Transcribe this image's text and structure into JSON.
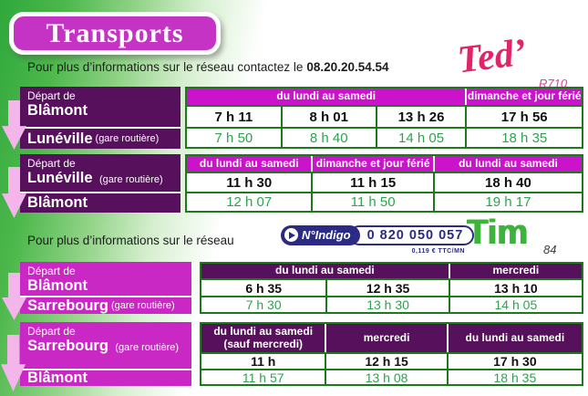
{
  "page": {
    "title": "Transports",
    "info_ted": {
      "text": "Pour plus d’informations sur le réseau contactez le",
      "phone": "08.20.20.54.54"
    },
    "ted_logo": {
      "name": "Ted’",
      "line": "R710"
    },
    "info_tim": {
      "text": "Pour plus d’informations sur le réseau"
    },
    "indigo": {
      "label": "N°Indigo",
      "number": "0 820 050 057",
      "rate": "0,119 € TTC/MN"
    },
    "tim_logo": {
      "name": "Tim",
      "line": "84"
    }
  },
  "tables": [
    {
      "label": {
        "prefix": "Départ de",
        "from": "Blâmont",
        "to": "Lunéville",
        "to_suffix": "(gare routière)"
      },
      "header": [
        "du lundi au samedi",
        "dimanche et jour férié"
      ],
      "departures": [
        "7 h 11",
        "8 h 01",
        "13 h 26",
        "17 h 56"
      ],
      "arrivals": [
        "7 h 50",
        "8 h 40",
        "14 h 05",
        "18 h 35"
      ]
    },
    {
      "label": {
        "prefix": "Départ de",
        "from": "Lunéville",
        "from_suffix": "(gare routière)",
        "to": "Blâmont"
      },
      "header": [
        "du lundi au samedi",
        "dimanche et jour férié",
        "du lundi au samedi"
      ],
      "departures": [
        "11 h 30",
        "11 h 15",
        "18 h 40"
      ],
      "arrivals": [
        "12 h 07",
        "11 h 50",
        "19 h 17"
      ]
    },
    {
      "label": {
        "prefix": "Départ de",
        "from": "Blâmont",
        "to": "Sarrebourg",
        "to_suffix": "(gare routière)"
      },
      "header": [
        "du lundi au samedi",
        "mercredi"
      ],
      "departures": [
        "6 h 35",
        "12 h 35",
        "13 h 10"
      ],
      "arrivals": [
        "7 h 30",
        "13 h 30",
        "14 h 05"
      ]
    },
    {
      "label": {
        "prefix": "Départ de",
        "from": "Sarrebourg",
        "from_suffix": "(gare routière)",
        "to": "Blâmont"
      },
      "header": [
        {
          "line1": "du lundi au samedi",
          "line2": "(sauf mercredi)"
        },
        "mercredi",
        "du lundi au samedi"
      ],
      "departures": [
        "11 h",
        "12 h 15",
        "17 h 30"
      ],
      "arrivals": [
        "11 h 57",
        "13 h 08",
        "18 h 35"
      ]
    }
  ],
  "colors": {
    "magenta": "#cb13cb",
    "dark_purple": "#57115c",
    "table_border_green": "#1c7a1c",
    "time_green": "#2fa24e",
    "ted_pink": "#e0246a",
    "tim_green": "#3cb43c",
    "indigo_navy": "#2b2b86",
    "background_green": "#3fae49",
    "arrow_pink": "#f3b5ea"
  }
}
